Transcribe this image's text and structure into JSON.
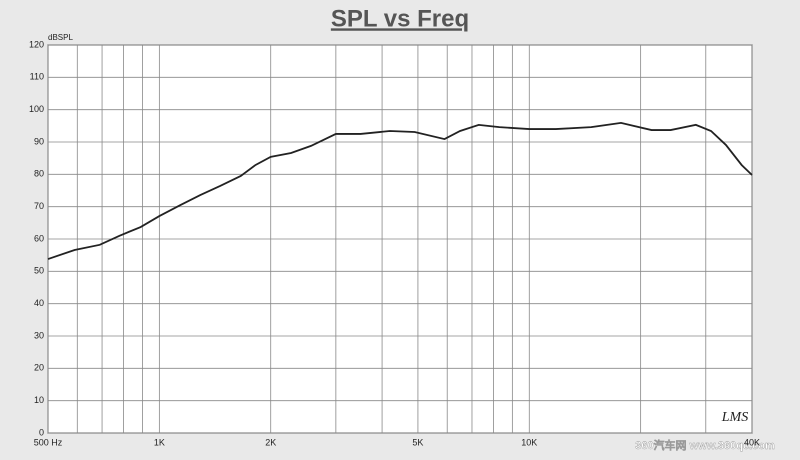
{
  "chart_data": {
    "type": "line",
    "title": "SPL vs Freq",
    "y_label": "dBSPL",
    "x": [
      500,
      590,
      690,
      780,
      890,
      1000,
      1140,
      1290,
      1460,
      1660,
      1820,
      2000,
      2270,
      2570,
      3000,
      3500,
      4200,
      4900,
      5900,
      6500,
      7300,
      8300,
      10000,
      11800,
      14700,
      17700,
      21400,
      24100,
      28200,
      31000,
      34000,
      37500,
      40000
    ],
    "values": [
      53.8,
      56.6,
      58.2,
      61,
      63.7,
      67.1,
      70.5,
      73.6,
      76.4,
      79.5,
      82.9,
      85.4,
      86.6,
      88.8,
      92.5,
      92.5,
      93.4,
      93.1,
      90.9,
      93.4,
      95.3,
      94.6,
      94,
      94,
      94.6,
      95.9,
      93.7,
      93.7,
      95.3,
      93.4,
      89.1,
      82.9,
      79.8
    ],
    "color": "#222222",
    "x_log": true,
    "grid": true,
    "xlim": [
      500,
      40000
    ],
    "xticks": [
      {
        "value": 500,
        "label": "500  Hz"
      },
      {
        "value": 1000,
        "label": "1K"
      },
      {
        "value": 2000,
        "label": "2K"
      },
      {
        "value": 5000,
        "label": "5K"
      },
      {
        "value": 10000,
        "label": "10K"
      },
      {
        "value": 40000,
        "label": "40K"
      }
    ],
    "x_minor_grid": [
      600,
      700,
      800,
      900,
      3000,
      4000,
      6000,
      7000,
      8000,
      9000,
      20000,
      30000
    ],
    "ylim": [
      0,
      120
    ],
    "yticks": [
      0,
      10,
      20,
      30,
      40,
      50,
      60,
      70,
      80,
      90,
      100,
      110,
      120
    ],
    "logo": "LMS",
    "watermark": "360汽车网 www.360qc.com"
  }
}
